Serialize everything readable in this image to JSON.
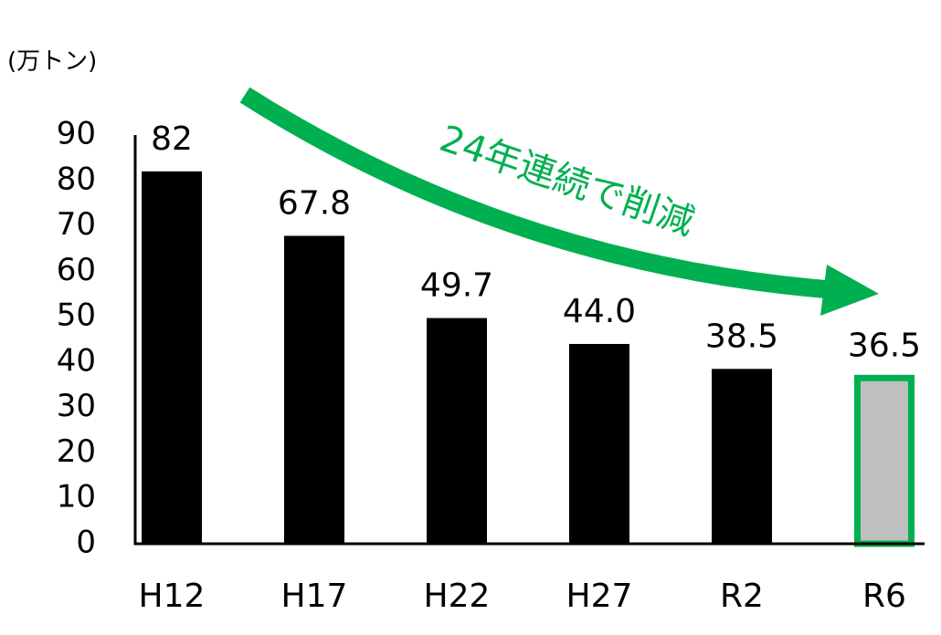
{
  "chart_data": {
    "type": "bar",
    "unit_label": "(万トン)",
    "annotation": "24年連続で削減",
    "annotation_color": "#00b050",
    "categories": [
      "H12",
      "H17",
      "H22",
      "H27",
      "R2",
      "R6"
    ],
    "values": [
      82,
      67.8,
      49.7,
      44.0,
      38.5,
      36.5
    ],
    "value_labels": [
      "82",
      "67.8",
      "49.7",
      "44.0",
      "38.5",
      "36.5"
    ],
    "bar_colors": [
      "#000000",
      "#000000",
      "#000000",
      "#000000",
      "#000000",
      "#bfbfbf"
    ],
    "bar_edge_colors": [
      null,
      null,
      null,
      null,
      null,
      "#00b050"
    ],
    "ylim": [
      0,
      90
    ],
    "yticks": [
      0,
      10,
      20,
      30,
      40,
      50,
      60,
      70,
      80,
      90
    ],
    "grid": false
  }
}
